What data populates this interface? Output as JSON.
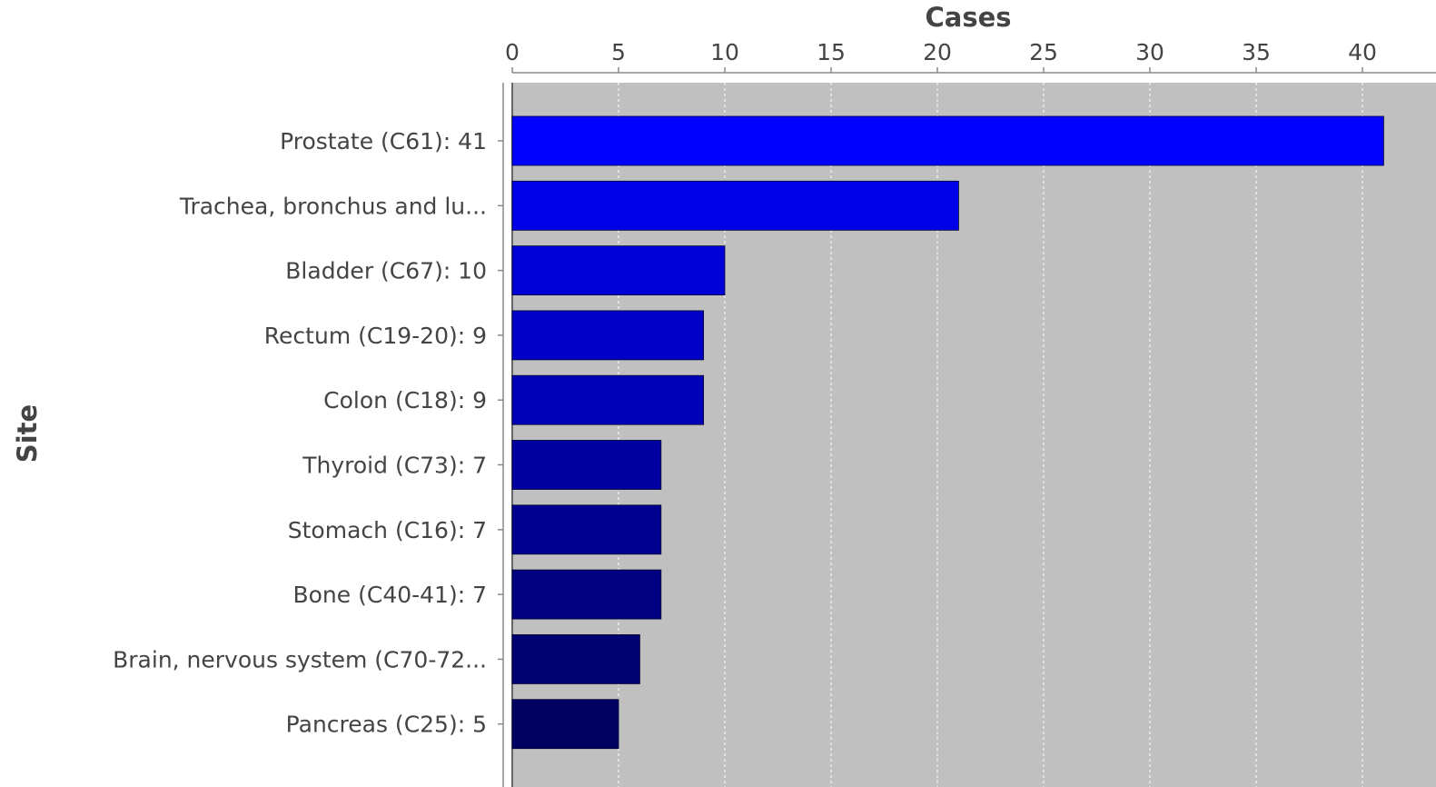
{
  "chart_data": {
    "type": "bar",
    "orientation": "horizontal",
    "xlabel": "Cases",
    "ylabel": "Site",
    "xlim": [
      0,
      42
    ],
    "x_ticks": [
      0,
      5,
      10,
      15,
      20,
      25,
      30,
      35,
      40
    ],
    "x_axis_position": "top",
    "grid": true,
    "plot_background": "#c0c0c0",
    "categories": [
      "Prostate (C61): 41",
      "Trachea, bronchus and lu...",
      "Bladder (C67): 10",
      "Rectum (C19-20): 9",
      "Colon (C18): 9",
      "Thyroid (C73): 7",
      "Stomach (C16): 7",
      "Bone (C40-41): 7",
      "Brain, nervous system (C70-72...",
      "Pancreas (C25): 5"
    ],
    "values": [
      41,
      21,
      10,
      9,
      9,
      7,
      7,
      7,
      6,
      5
    ],
    "colors": [
      "#0000ff",
      "#0000e6",
      "#0000d6",
      "#0000c6",
      "#0000b6",
      "#0000a0",
      "#000090",
      "#000080",
      "#000070",
      "#000060"
    ]
  }
}
